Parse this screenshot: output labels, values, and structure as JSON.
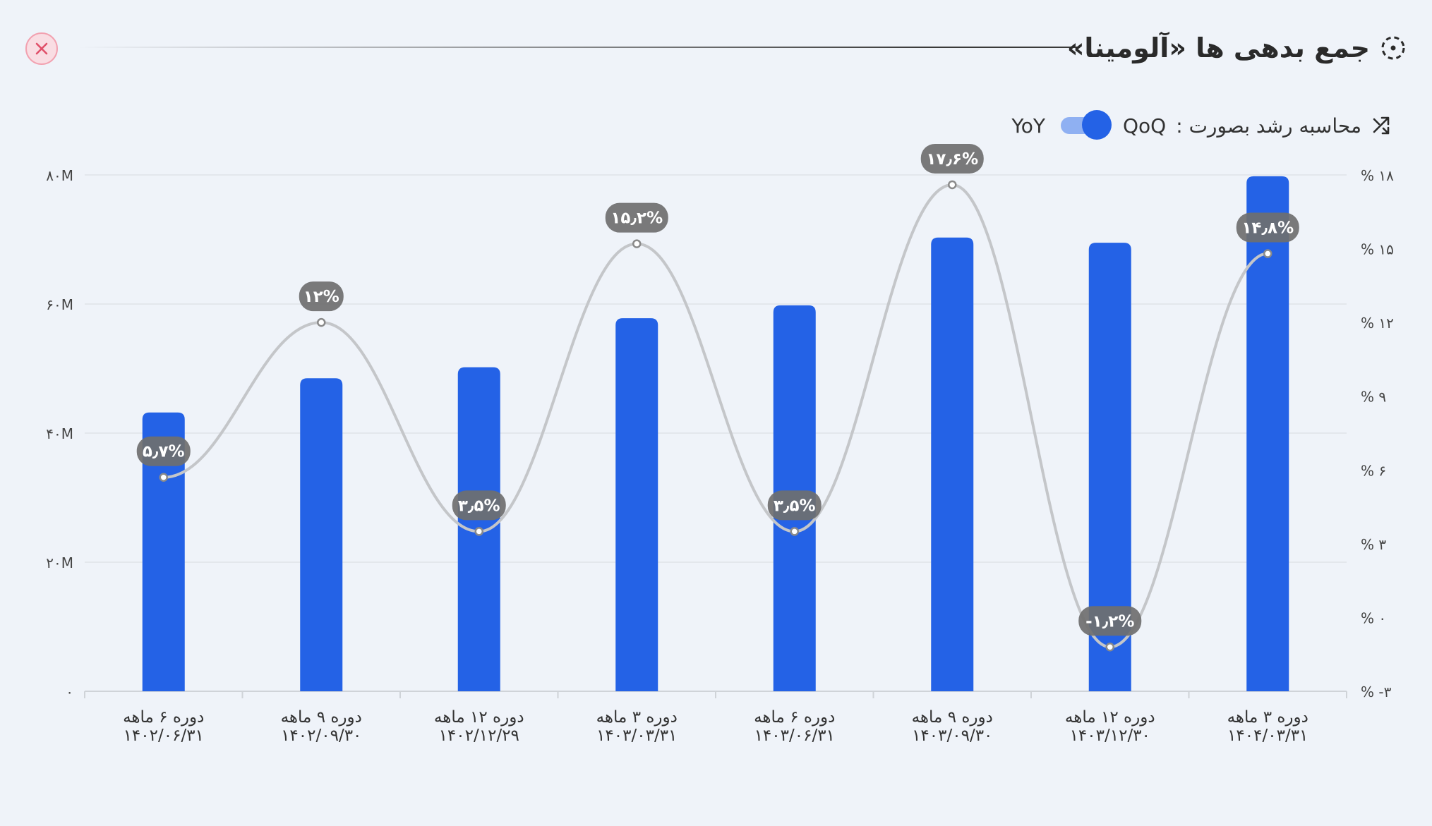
{
  "header": {
    "title": "جمع بدهی ها «آلومینا»",
    "title_icon": "dashed-circle-icon",
    "close_icon": "close-icon"
  },
  "toggle": {
    "label": "محاسبه رشد بصورت :",
    "option_on": "QoQ",
    "option_off": "YoY",
    "state": "QoQ",
    "icon": "shuffle-icon"
  },
  "colors": {
    "bar": "#2462e6",
    "line": "#c4c6c9",
    "label_bg": "#6f6f6f",
    "grid": "#dfe3e8",
    "close_border": "#f2a1b0",
    "close_icon": "#e0506a"
  },
  "chart_data": {
    "type": "bar",
    "categories": [
      "دوره ۶ ماهه ۱۴۰۲/۰۶/۳۱",
      "دوره ۹ ماهه ۱۴۰۲/۰۹/۳۰",
      "دوره ۱۲ ماهه ۱۴۰۲/۱۲/۲۹",
      "دوره ۳ ماهه ۱۴۰۳/۰۳/۳۱",
      "دوره ۶ ماهه ۱۴۰۳/۰۶/۳۱",
      "دوره ۹ ماهه ۱۴۰۳/۰۹/۳۰",
      "دوره ۱۲ ماهه ۱۴۰۳/۱۲/۳۰",
      "دوره ۳ ماهه ۱۴۰۴/۰۳/۳۱"
    ],
    "category_lines": [
      [
        "دوره ۶ ماهه",
        "۱۴۰۲/۰۶/۳۱"
      ],
      [
        "دوره ۹ ماهه",
        "۱۴۰۲/۰۹/۳۰"
      ],
      [
        "دوره ۱۲ ماهه",
        "۱۴۰۲/۱۲/۲۹"
      ],
      [
        "دوره ۳ ماهه",
        "۱۴۰۳/۰۳/۳۱"
      ],
      [
        "دوره ۶ ماهه",
        "۱۴۰۳/۰۶/۳۱"
      ],
      [
        "دوره ۹ ماهه",
        "۱۴۰۳/۰۹/۳۰"
      ],
      [
        "دوره ۱۲ ماهه",
        "۱۴۰۳/۱۲/۳۰"
      ],
      [
        "دوره ۳ ماهه",
        "۱۴۰۴/۰۳/۳۱"
      ]
    ],
    "series": [
      {
        "type": "bar",
        "axis": "left",
        "values": [
          43.2,
          48.5,
          50.2,
          57.8,
          59.8,
          70.3,
          69.5,
          79.8
        ]
      },
      {
        "type": "line",
        "axis": "right",
        "values": [
          5.7,
          12,
          3.5,
          15.2,
          3.5,
          17.6,
          -1.2,
          14.8
        ],
        "labels": [
          "۵٫۷%",
          "۱۲%",
          "۳٫۵%",
          "۱۵٫۲%",
          "۳٫۵%",
          "۱۷٫۶%",
          "-۱٫۲%",
          "۱۴٫۸%"
        ]
      }
    ],
    "y_left": {
      "min": 0,
      "max": 80,
      "ticks": [
        0,
        20,
        40,
        60,
        80
      ],
      "tick_labels": [
        "۰",
        "۲۰M",
        "۴۰M",
        "۶۰M",
        "۸۰M"
      ]
    },
    "y_right": {
      "min": -3,
      "max": 18,
      "ticks": [
        -3,
        0,
        3,
        6,
        9,
        12,
        15,
        18
      ],
      "tick_labels": [
        "% -۳",
        "% ۰",
        "% ۳",
        "% ۶",
        "% ۹",
        "% ۱۲",
        "% ۱۵",
        "% ۱۸"
      ]
    },
    "grid": true,
    "legend": "none"
  }
}
